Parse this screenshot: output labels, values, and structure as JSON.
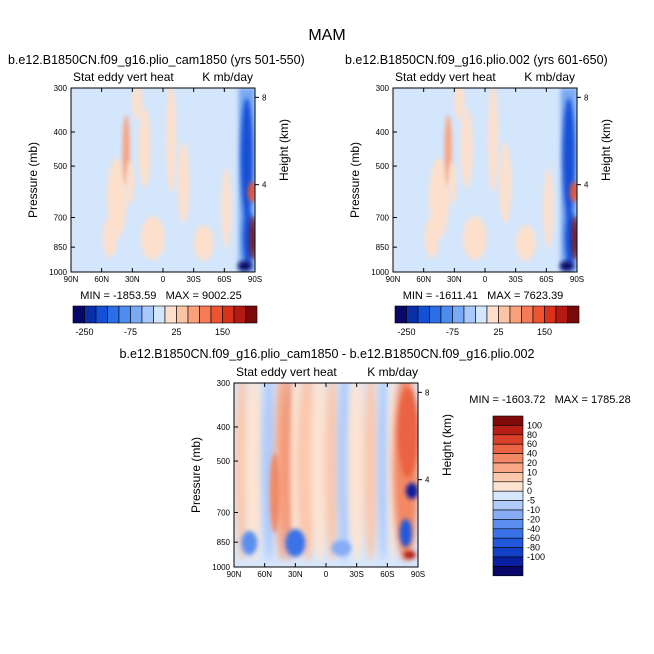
{
  "figure": {
    "title": "MAM"
  },
  "colors": {
    "panel_negative_scale": [
      "#08086b",
      "#0a2fa8",
      "#1450d6",
      "#2b6fe6",
      "#4d8cf0",
      "#7aaaf5",
      "#a9c8fb",
      "#d4e6fc"
    ],
    "panel_positive_scale": [
      "#fde0cc",
      "#fbc4a4",
      "#f9a07c",
      "#f57a55",
      "#ec5432",
      "#d8321b",
      "#b51a12",
      "#7a0a0a"
    ],
    "diff_scale": [
      "#08086b",
      "#0a1fa0",
      "#1240c8",
      "#2258dc",
      "#3a72e8",
      "#5a8ff0",
      "#86acf5",
      "#b0cbfa",
      "#d6e7fd",
      "#fde3d1",
      "#fbc8ac",
      "#f8a886",
      "#f38864",
      "#ea6443",
      "#d8402a",
      "#b51f15",
      "#800a0a"
    ]
  },
  "chart_data": [
    {
      "type": "heatmap",
      "title": "b.e12.B1850CN.f09_g16.plio_cam1850 (yrs 501-550)",
      "left_label": "Stat eddy vert heat",
      "right_label": "K mb/day",
      "xlabel": "",
      "ylabel": "Pressure (mb)",
      "y2label": "Height (km)",
      "x_ticks": [
        "90N",
        "60N",
        "30N",
        "0",
        "30S",
        "60S",
        "90S"
      ],
      "x_range": [
        90,
        -90
      ],
      "y_ticks": [
        "300",
        "400",
        "500",
        "700",
        "850",
        "1000"
      ],
      "y_range": [
        300,
        1000
      ],
      "y_scale": "log",
      "y2_ticks": [
        "8",
        "4"
      ],
      "stats": "MIN = -1853.59   MAX = 9002.25",
      "min": -1853.59,
      "max": 9002.25,
      "colorbar_labels": [
        "-250",
        "-75",
        "25",
        "150"
      ],
      "colorbar_location": "bottom",
      "grid": false
    },
    {
      "type": "heatmap",
      "title": "b.e12.B1850CN.f09_g16.plio.002 (yrs 601-650)",
      "left_label": "Stat eddy vert heat",
      "right_label": "K mb/day",
      "xlabel": "",
      "ylabel": "Pressure (mb)",
      "y2label": "Height (km)",
      "x_ticks": [
        "90N",
        "60N",
        "30N",
        "0",
        "30S",
        "60S",
        "90S"
      ],
      "x_range": [
        90,
        -90
      ],
      "y_ticks": [
        "300",
        "400",
        "500",
        "700",
        "850",
        "1000"
      ],
      "y_range": [
        300,
        1000
      ],
      "y_scale": "log",
      "y2_ticks": [
        "8",
        "4"
      ],
      "stats": "MIN = -1611.41   MAX = 7623.39",
      "min": -1611.41,
      "max": 7623.39,
      "colorbar_labels": [
        "-250",
        "-75",
        "25",
        "150"
      ],
      "colorbar_location": "bottom",
      "grid": false
    },
    {
      "type": "heatmap",
      "title": "b.e12.B1850CN.f09_g16.plio_cam1850 - b.e12.B1850CN.f09_g16.plio.002",
      "left_label": "Stat eddy vert heat",
      "right_label": "K mb/day",
      "xlabel": "",
      "ylabel": "Pressure (mb)",
      "y2label": "Height (km)",
      "x_ticks": [
        "90N",
        "60N",
        "30N",
        "0",
        "30S",
        "60S",
        "90S"
      ],
      "x_range": [
        90,
        -90
      ],
      "y_ticks": [
        "300",
        "400",
        "500",
        "700",
        "850",
        "1000"
      ],
      "y_range": [
        300,
        1000
      ],
      "y_scale": "log",
      "y2_ticks": [
        "8",
        "4"
      ],
      "stats": "MIN = -1603.72   MAX = 1785.28",
      "min": -1603.72,
      "max": 1785.28,
      "colorbar_labels": [
        "100",
        "80",
        "60",
        "40",
        "20",
        "10",
        "5",
        "0",
        "-5",
        "-10",
        "-20",
        "-40",
        "-60",
        "-80",
        "-100"
      ],
      "colorbar_location": "right",
      "grid": false
    }
  ]
}
